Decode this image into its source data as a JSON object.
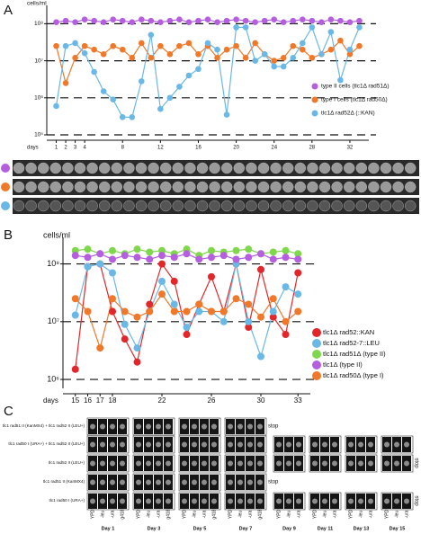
{
  "chart_data": [
    {
      "type": "line",
      "label": "A",
      "y_label": "cells/ml",
      "x_label": "days",
      "log_y": true,
      "grid": true,
      "legend": "right",
      "xlim": [
        0,
        34
      ],
      "ylim": [
        100000,
        250000000
      ],
      "xticks": [
        1,
        2,
        3,
        4,
        8,
        12,
        16,
        20,
        24,
        28,
        32
      ],
      "yticks": [
        {
          "value": 100000,
          "label": "10⁵"
        },
        {
          "value": 1000000,
          "label": "10⁶"
        },
        {
          "value": 10000000,
          "label": "10⁷"
        },
        {
          "value": 100000000,
          "label": "10⁸"
        }
      ],
      "x": [
        1,
        2,
        3,
        4,
        5,
        6,
        7,
        8,
        9,
        10,
        11,
        12,
        13,
        14,
        15,
        16,
        17,
        18,
        19,
        20,
        21,
        22,
        23,
        24,
        25,
        26,
        27,
        28,
        29,
        30,
        31,
        32,
        33
      ],
      "series": [
        {
          "name": "type II cells (tlc1Δ rad51Δ)",
          "color": "#b65ee0",
          "values": [
            110000000,
            120000000,
            110000000,
            130000000,
            120000000,
            110000000,
            130000000,
            120000000,
            110000000,
            130000000,
            120000000,
            110000000,
            120000000,
            130000000,
            110000000,
            120000000,
            130000000,
            110000000,
            120000000,
            130000000,
            120000000,
            110000000,
            120000000,
            130000000,
            110000000,
            120000000,
            130000000,
            120000000,
            110000000,
            130000000,
            120000000,
            110000000,
            120000000
          ]
        },
        {
          "name": "type I cells (tlc1Δ rad50Δ)",
          "color": "#f07828",
          "values": [
            25000000,
            2500000,
            12000000,
            25000000,
            20000000,
            15000000,
            25000000,
            20000000,
            12000000,
            30000000,
            12000000,
            25000000,
            15000000,
            25000000,
            30000000,
            15000000,
            25000000,
            12000000,
            20000000,
            25000000,
            12000000,
            30000000,
            15000000,
            10000000,
            12000000,
            25000000,
            20000000,
            12000000,
            15000000,
            20000000,
            35000000,
            15000000,
            25000000
          ]
        },
        {
          "name": "tlc1Δ rad52Δ (::KAN)",
          "color": "#6ab8e6",
          "values": [
            600000,
            25000000,
            30000000,
            16000000,
            5000000,
            1500000,
            900000,
            300000,
            300000,
            2800000,
            50000000,
            500000,
            1000000,
            2000000,
            4000000,
            6000000,
            30000000,
            20000000,
            350000,
            80000000,
            80000000,
            10000000,
            15000000,
            7000000,
            7000000,
            12000000,
            30000000,
            80000000,
            15000000,
            60000000,
            3000000,
            20000000,
            80000000
          ]
        }
      ]
    },
    {
      "type": "line",
      "label": "B",
      "y_label": "cells/ml",
      "x_label": "days",
      "log_y": true,
      "grid": true,
      "legend": "right",
      "xlim": [
        14,
        34
      ],
      "ylim": [
        700000,
        250000000
      ],
      "xticks": [
        15,
        16,
        17,
        18,
        22,
        26,
        30,
        33
      ],
      "yticks": [
        {
          "value": 1000000,
          "label": "10⁶"
        },
        {
          "value": 10000000,
          "label": "10⁷"
        },
        {
          "value": 100000000,
          "label": "10⁸"
        }
      ],
      "x": [
        15,
        16,
        17,
        18,
        19,
        20,
        21,
        22,
        23,
        24,
        25,
        26,
        27,
        28,
        29,
        30,
        31,
        32,
        33
      ],
      "series": [
        {
          "name": "tlc1Δ rad52::KAN",
          "color": "#e3262a",
          "values": [
            1500000,
            90000000,
            100000000,
            15000000,
            5000000,
            2000000,
            20000000,
            100000000,
            50000000,
            6000000,
            20000000,
            60000000,
            15000000,
            100000000,
            8000000,
            80000000,
            12000000,
            6000000,
            70000000
          ]
        },
        {
          "name": "tlc1Δ rad52-7::LEU",
          "color": "#6ab8e6",
          "values": [
            13000000,
            90000000,
            100000000,
            70000000,
            9000000,
            3500000,
            15000000,
            50000000,
            20000000,
            8000000,
            15000000,
            15000000,
            10000000,
            100000000,
            10000000,
            2500000,
            15000000,
            40000000,
            30000000
          ]
        },
        {
          "name": "tlc1Δ rad51Δ (type II)",
          "color": "#7fd84c",
          "values": [
            170000000,
            180000000,
            150000000,
            170000000,
            150000000,
            180000000,
            160000000,
            170000000,
            150000000,
            180000000,
            140000000,
            170000000,
            160000000,
            170000000,
            180000000,
            150000000,
            160000000,
            170000000,
            150000000
          ]
        },
        {
          "name": "tlc1Δ (type II)",
          "color": "#b65ee0",
          "values": [
            140000000,
            130000000,
            150000000,
            120000000,
            140000000,
            130000000,
            120000000,
            140000000,
            130000000,
            150000000,
            120000000,
            130000000,
            140000000,
            120000000,
            130000000,
            150000000,
            120000000,
            130000000,
            120000000
          ]
        },
        {
          "name": "tlc1Δ rad50Δ (type I)",
          "color": "#f07828",
          "values": [
            25000000,
            15000000,
            3500000,
            25000000,
            15000000,
            12000000,
            15000000,
            30000000,
            15000000,
            15000000,
            20000000,
            15000000,
            15000000,
            25000000,
            20000000,
            12000000,
            25000000,
            10000000,
            15000000
          ]
        }
      ]
    }
  ],
  "panel_c": {
    "label": "C",
    "stop": "stop",
    "rows": [
      "tlc1 rad51 II (KanMX4) + tlc1 rad52 II (LEU+)",
      "tlc1 rad50 I (URA+) + tlc1 rad52 II (LEU+)",
      "tlc1 rad52 II (LEU+)",
      "tlc1 rad51 II (KanMX4)",
      "tlc1 rad50 I (URA+)"
    ],
    "days": [
      {
        "label": "Day 1",
        "media": [
          "YPD",
          "-leu",
          "-ura",
          "g418"
        ]
      },
      {
        "label": "Day 3",
        "media": [
          "YPD",
          "-leu",
          "-ura",
          "g418"
        ]
      },
      {
        "label": "Day 5",
        "media": [
          "YPD",
          "-leu",
          "-ura",
          "g418"
        ]
      },
      {
        "label": "Day 7",
        "media": [
          "YPD",
          "-leu",
          "-ura",
          "g418"
        ]
      },
      {
        "label": "Day 9",
        "media": [
          "YPD",
          "-leu",
          "-ura"
        ]
      },
      {
        "label": "Day 11",
        "media": [
          "YPD",
          "-leu",
          "-ura"
        ]
      },
      {
        "label": "Day 13",
        "media": [
          "YPD",
          "-leu",
          "-ura"
        ]
      },
      {
        "label": "Day 15",
        "media": [
          "YPD",
          "-leu",
          "-ura"
        ]
      }
    ]
  }
}
